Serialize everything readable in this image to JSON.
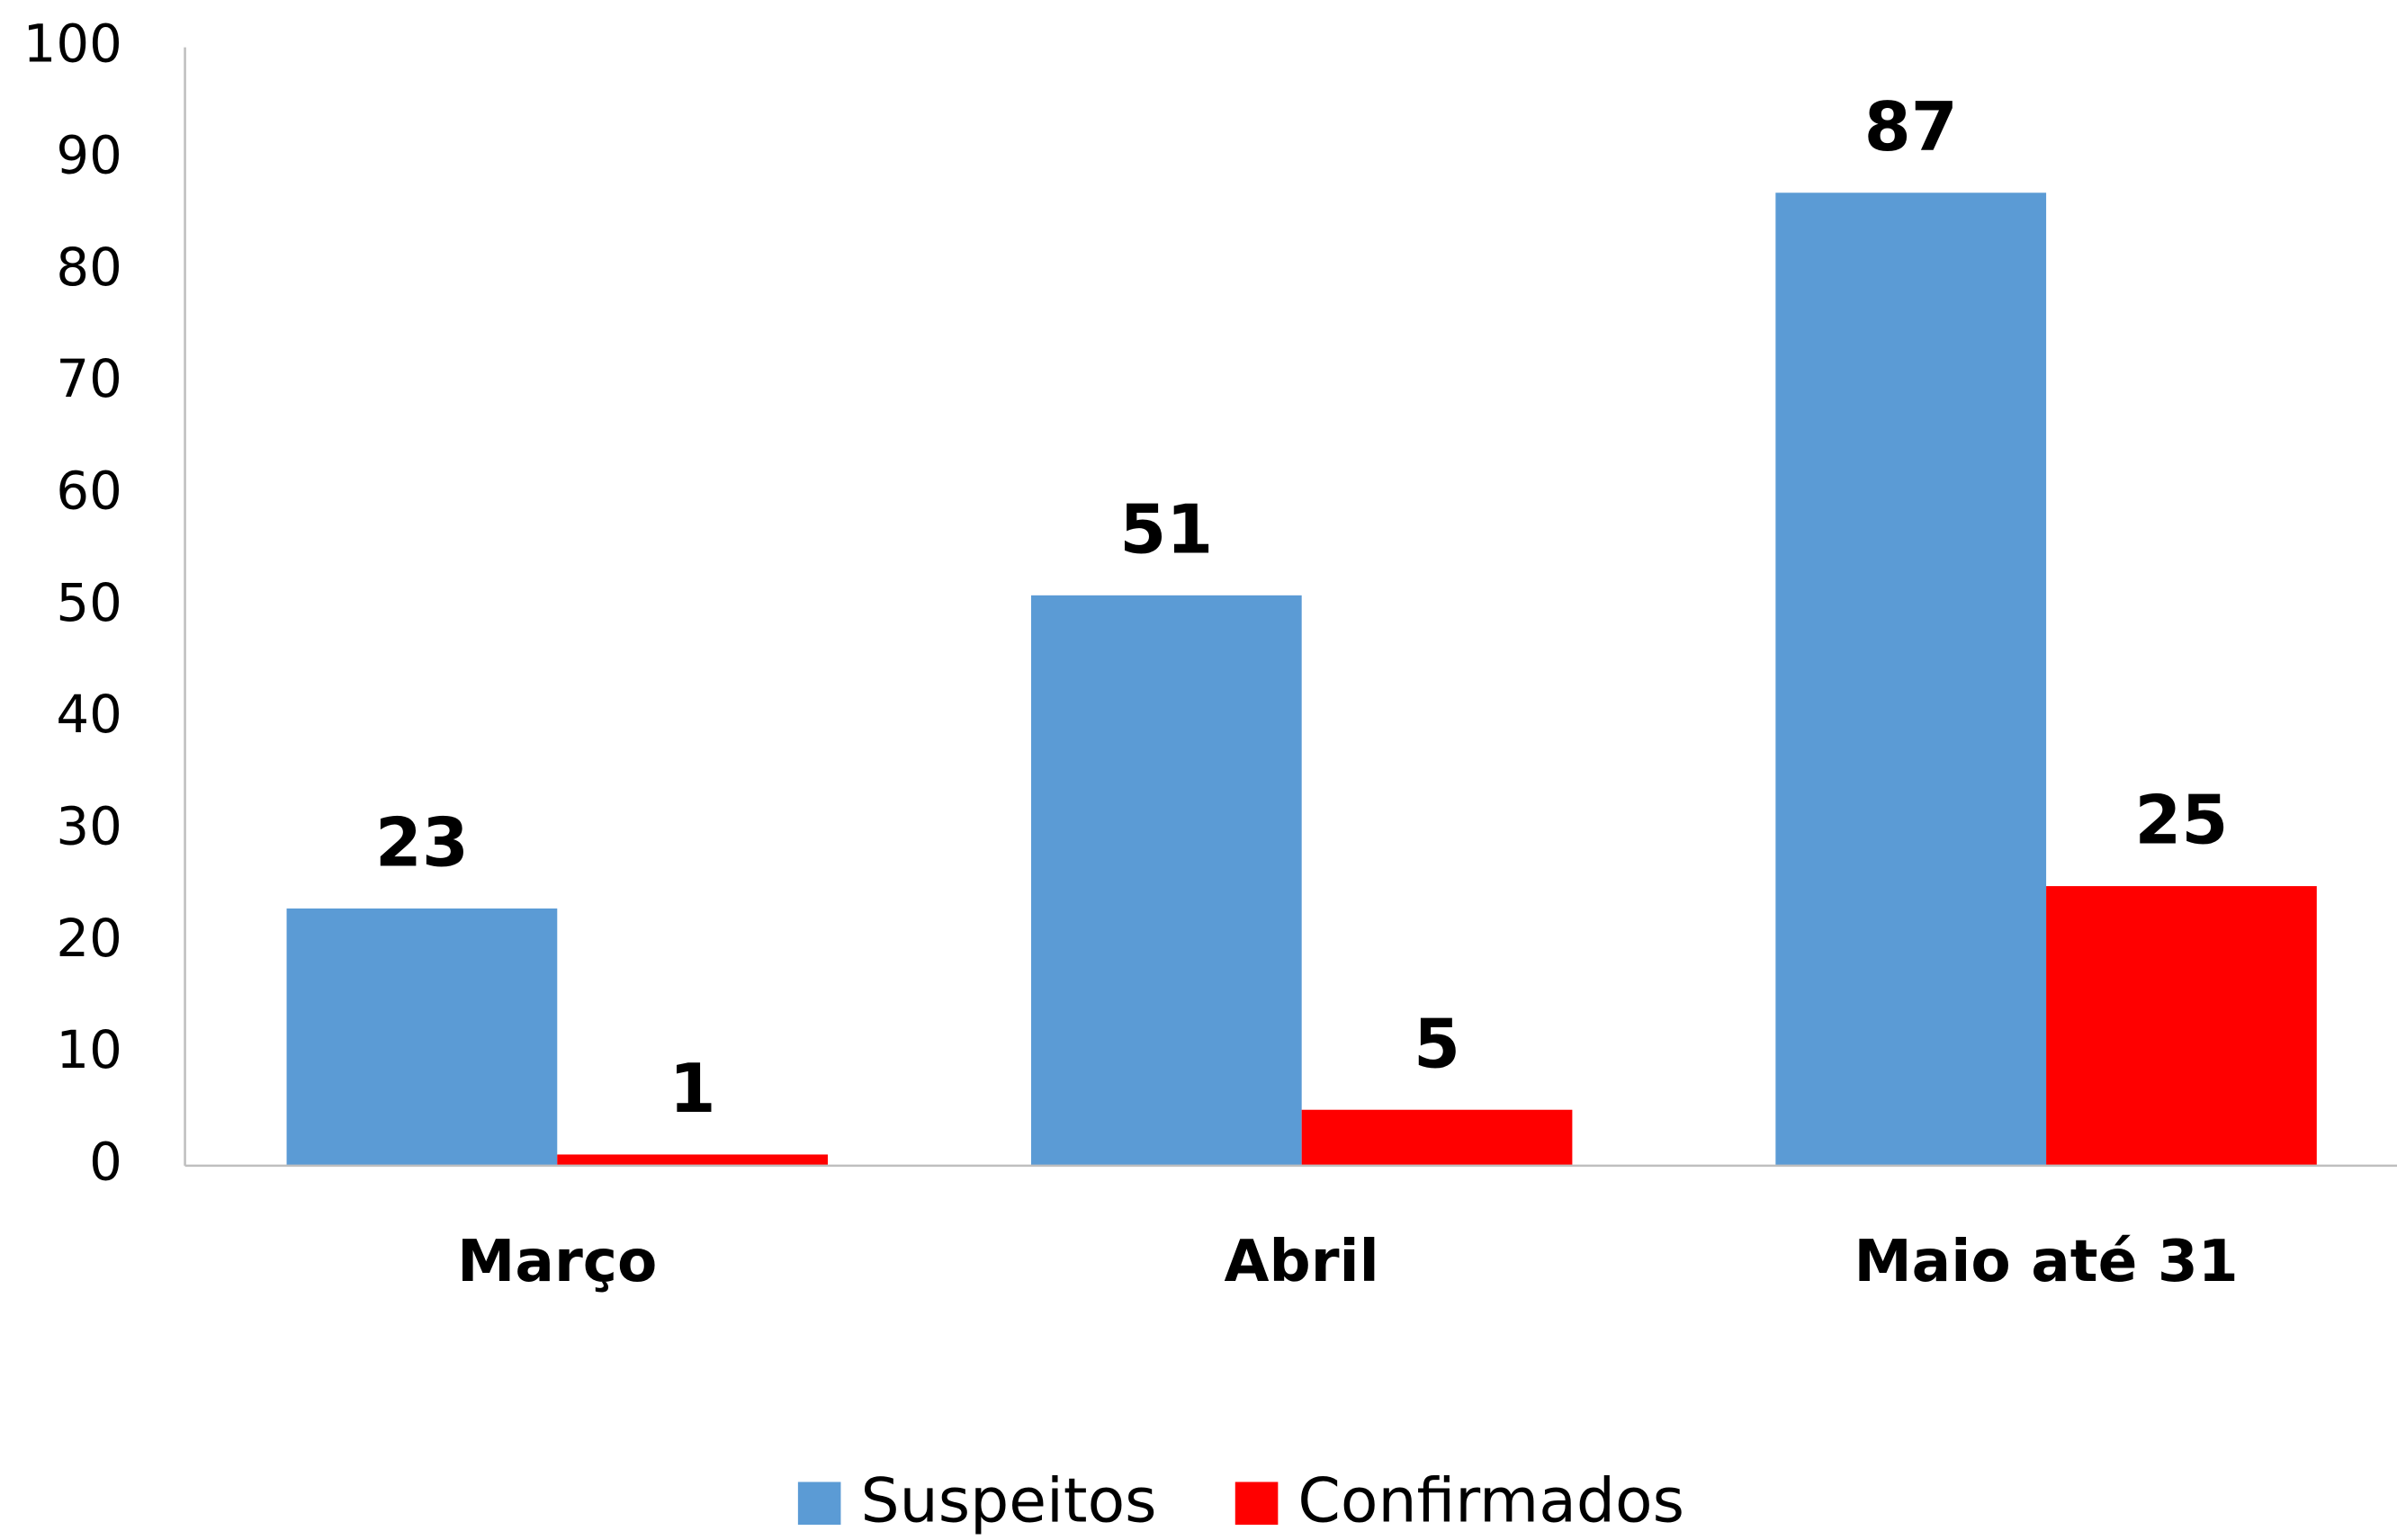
{
  "chart_data": {
    "type": "bar",
    "categories": [
      "Março",
      "Abril",
      "Maio até 31"
    ],
    "series": [
      {
        "name": "Suspeitos",
        "color": "#5b9bd5",
        "values": [
          23,
          51,
          87
        ]
      },
      {
        "name": "Confirmados",
        "color": "#ff0000",
        "values": [
          1,
          5,
          25
        ]
      }
    ],
    "ylim": [
      0,
      100
    ],
    "yticks": [
      0,
      10,
      20,
      30,
      40,
      50,
      60,
      70,
      80,
      90,
      100
    ],
    "grid": false,
    "legend": "bottom"
  }
}
